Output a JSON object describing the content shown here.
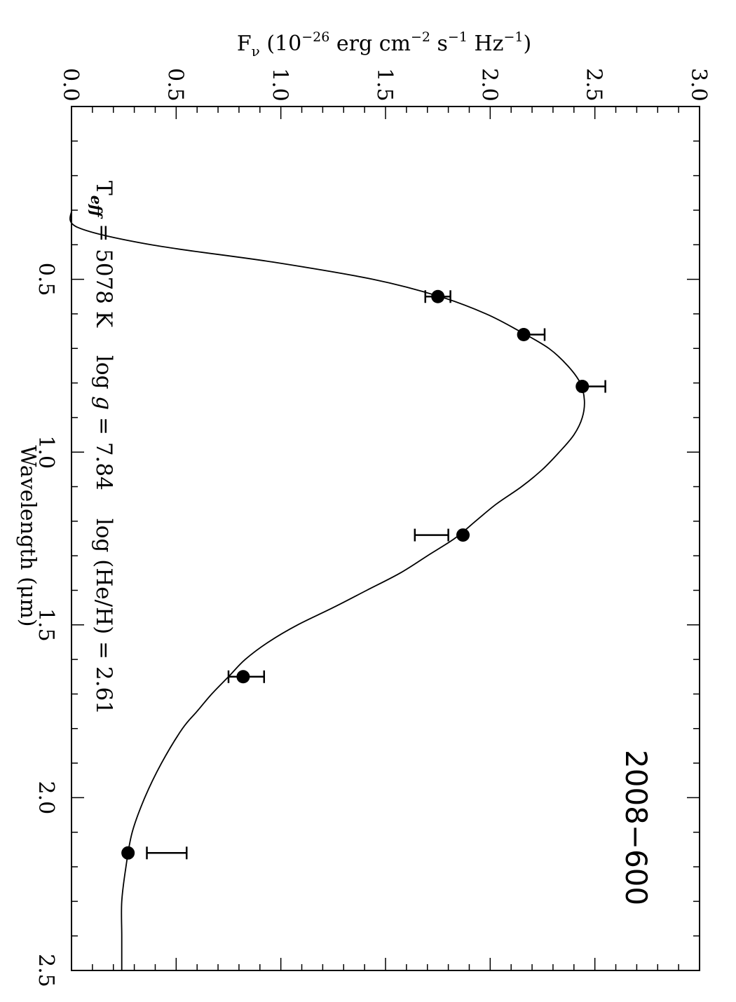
{
  "chart_data": {
    "type": "scatter",
    "orientation": "rotated-90-clockwise",
    "object_label": "2008−600",
    "xlabel": "Wavelength (μm)",
    "ylabel": {
      "base": "F",
      "sub": "ν",
      "t1": " (10",
      "sup1": "−26",
      "t2": " erg cm",
      "sup2": "−2",
      "t3": " s",
      "sup3": "−1",
      "t4": " Hz",
      "sup4": "−1",
      "t5": ")"
    },
    "xlim": [
      0.0,
      2.5
    ],
    "ylim": [
      0.0,
      3.0
    ],
    "x_ticks": [
      "0.5",
      "1.0",
      "1.5",
      "2.0",
      "2.5"
    ],
    "y_ticks": [
      "0.0",
      "0.5",
      "1.0",
      "1.5",
      "2.0",
      "2.5",
      "3.0"
    ],
    "x_minor_step": 0.1,
    "y_minor_step": 0.1,
    "annotation": {
      "teff_base": "T",
      "teff_sub": "eff",
      "teff_value": " = 5078 K",
      "logg_pre": "log ",
      "logg_g": "g",
      "logg_value": " = 7.84",
      "loghe": "log (He/H) = 2.61"
    },
    "series": [
      {
        "kind": "observed",
        "marker": "filled-circle",
        "x": [
          0.55,
          0.66,
          0.81,
          1.24,
          1.65,
          2.16
        ],
        "y": [
          1.75,
          2.16,
          2.44,
          1.87,
          0.82,
          0.27
        ]
      },
      {
        "kind": "error-bars",
        "x": [
          0.55,
          0.66,
          0.81,
          1.24,
          1.65,
          2.16
        ],
        "y": [
          1.75,
          2.16,
          2.44,
          1.87,
          0.82,
          0.27
        ],
        "low": [
          1.69,
          2.16,
          2.43,
          1.64,
          0.75,
          0.36
        ],
        "high": [
          1.81,
          2.26,
          2.55,
          1.8,
          0.92,
          0.55
        ]
      },
      {
        "kind": "model-fit",
        "x": [
          0.3,
          0.35,
          0.4,
          0.45,
          0.5,
          0.55,
          0.6,
          0.65,
          0.7,
          0.75,
          0.8,
          0.85,
          0.9,
          0.95,
          1.0,
          1.05,
          1.1,
          1.15,
          1.2,
          1.25,
          1.3,
          1.35,
          1.4,
          1.45,
          1.5,
          1.55,
          1.6,
          1.65,
          1.7,
          1.75,
          1.8,
          1.9,
          2.0,
          2.1,
          2.2,
          2.3,
          2.4,
          2.5
        ],
        "y": [
          0.0,
          0.03,
          0.38,
          0.96,
          1.44,
          1.76,
          1.98,
          2.14,
          2.28,
          2.37,
          2.43,
          2.45,
          2.44,
          2.4,
          2.33,
          2.25,
          2.15,
          2.03,
          1.93,
          1.83,
          1.7,
          1.57,
          1.41,
          1.25,
          1.08,
          0.94,
          0.83,
          0.75,
          0.67,
          0.6,
          0.53,
          0.43,
          0.35,
          0.29,
          0.26,
          0.24,
          0.24,
          0.24
        ]
      }
    ]
  }
}
